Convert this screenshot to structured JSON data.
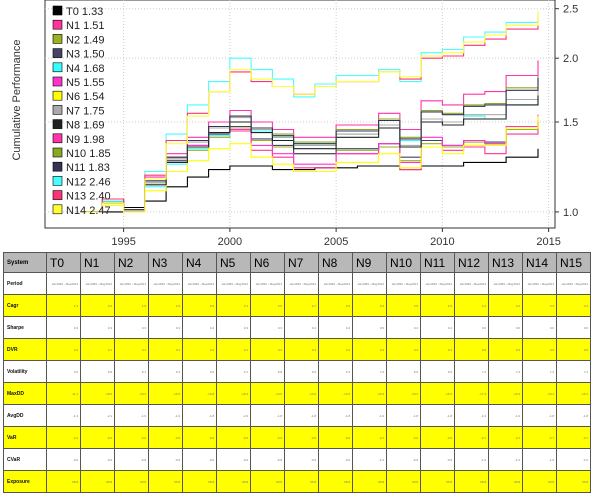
{
  "chart_data": {
    "type": "line",
    "title": "",
    "xlabel": "",
    "ylabel": "Cumulative Performance",
    "x_ticks": [
      "1995",
      "2000",
      "2005",
      "2010",
      "2015"
    ],
    "x_tick_values": [
      1995,
      2000,
      2005,
      2010,
      2015
    ],
    "y_ticks": [
      "1.0",
      "1.5",
      "2.0",
      "2.5"
    ],
    "y_tick_values": [
      1.0,
      1.5,
      2.0,
      2.5
    ],
    "xlim": [
      1991.3,
      2015.3
    ],
    "ylim": [
      0.93,
      2.6
    ],
    "y_scale": "log",
    "grid": true,
    "legend_position": "top-left",
    "series": [
      {
        "name": "T0",
        "label": "T0 1.33",
        "color": "#000000",
        "x": [
          1993.0,
          1995,
          1996,
          1997,
          1998,
          1999,
          2000,
          2002,
          2004,
          2006,
          2008,
          2009,
          2011,
          2013,
          2014.5
        ],
        "y": [
          1.0,
          1.02,
          1.05,
          1.12,
          1.17,
          1.21,
          1.23,
          1.21,
          1.22,
          1.23,
          1.21,
          1.23,
          1.25,
          1.28,
          1.33
        ]
      },
      {
        "name": "N1",
        "label": "N1 1.51",
        "color": "#ff3399",
        "x": [
          1993.0,
          1994,
          1995,
          1996,
          1997,
          1998,
          1999,
          2000,
          2001,
          2002,
          2003,
          2005,
          2007,
          2008,
          2009,
          2010,
          2011,
          2012,
          2013,
          2014.5
        ],
        "y": [
          1.0,
          1.06,
          1.0,
          1.16,
          1.28,
          1.35,
          1.42,
          1.44,
          1.32,
          1.28,
          1.22,
          1.3,
          1.34,
          1.21,
          1.38,
          1.32,
          1.34,
          1.3,
          1.42,
          1.51
        ]
      },
      {
        "name": "N2",
        "label": "N2 1.49",
        "color": "#99b21f",
        "x": [
          1993.0,
          1994,
          1995,
          1996,
          1997,
          1998,
          1999,
          2000,
          2001,
          2002,
          2003,
          2005,
          2007,
          2008,
          2009,
          2010,
          2011,
          2012,
          2013,
          2014.5
        ],
        "y": [
          1.0,
          1.05,
          1.01,
          1.14,
          1.25,
          1.32,
          1.4,
          1.46,
          1.38,
          1.34,
          1.3,
          1.32,
          1.34,
          1.26,
          1.36,
          1.34,
          1.37,
          1.36,
          1.45,
          1.49
        ]
      },
      {
        "name": "N3",
        "label": "N3 1.50",
        "color": "#444466",
        "x": [
          1993.0,
          1994,
          1995,
          1996,
          1997,
          1998,
          1999,
          2000,
          2001,
          2002,
          2003,
          2005,
          2007,
          2008,
          2009,
          2010,
          2011,
          2012,
          2013,
          2014.5
        ],
        "y": [
          1.0,
          1.05,
          1.01,
          1.15,
          1.26,
          1.34,
          1.42,
          1.47,
          1.39,
          1.35,
          1.3,
          1.33,
          1.36,
          1.28,
          1.38,
          1.35,
          1.38,
          1.37,
          1.46,
          1.5
        ]
      },
      {
        "name": "N4",
        "label": "N4 1.68",
        "color": "#33ffff",
        "x": [
          1993.0,
          1994,
          1995,
          1996,
          1997,
          1998,
          1999,
          2000,
          2001,
          2002,
          2003,
          2005,
          2007,
          2008,
          2009,
          2010,
          2011,
          2012,
          2013,
          2014.5
        ],
        "y": [
          1.0,
          1.04,
          1.0,
          1.12,
          1.24,
          1.33,
          1.41,
          1.5,
          1.44,
          1.4,
          1.36,
          1.42,
          1.48,
          1.38,
          1.52,
          1.5,
          1.54,
          1.52,
          1.62,
          1.68
        ]
      },
      {
        "name": "N5",
        "label": "N5 1.55",
        "color": "#ff33cc",
        "x": [
          1993.0,
          1994,
          1995,
          1996,
          1997,
          1998,
          1999,
          2000,
          2001,
          2002,
          2003,
          2005,
          2007,
          2008,
          2009,
          2010,
          2011,
          2012,
          2013,
          2014.5
        ],
        "y": [
          1.0,
          1.06,
          1.0,
          1.16,
          1.27,
          1.35,
          1.43,
          1.45,
          1.35,
          1.3,
          1.24,
          1.3,
          1.36,
          1.25,
          1.4,
          1.35,
          1.38,
          1.36,
          1.47,
          1.55
        ]
      },
      {
        "name": "N6",
        "label": "N6 1.54",
        "color": "#ffff00",
        "x": [
          1993.0,
          1994,
          1995,
          1996,
          1997,
          1998,
          1999,
          2000,
          2001,
          2002,
          2003,
          2005,
          2007,
          2008,
          2009,
          2010,
          2011,
          2012,
          2013,
          2014.5
        ],
        "y": [
          1.0,
          1.03,
          1.0,
          1.1,
          1.2,
          1.26,
          1.33,
          1.36,
          1.28,
          1.24,
          1.2,
          1.25,
          1.3,
          1.22,
          1.34,
          1.3,
          1.35,
          1.35,
          1.46,
          1.54
        ]
      },
      {
        "name": "N7",
        "label": "N7 1.75",
        "color": "#aaaaaa",
        "x": [
          1993.0,
          1994,
          1995,
          1996,
          1997,
          1998,
          1999,
          2000,
          2001,
          2002,
          2003,
          2005,
          2007,
          2008,
          2009,
          2010,
          2011,
          2012,
          2013,
          2014.5
        ],
        "y": [
          1.0,
          1.05,
          1.01,
          1.14,
          1.27,
          1.37,
          1.46,
          1.53,
          1.45,
          1.4,
          1.35,
          1.42,
          1.48,
          1.35,
          1.52,
          1.5,
          1.55,
          1.55,
          1.66,
          1.75
        ]
      },
      {
        "name": "N8",
        "label": "N8 1.69",
        "color": "#222222",
        "x": [
          1993.0,
          1994,
          1995,
          1996,
          1997,
          1998,
          1999,
          2000,
          2001,
          2002,
          2003,
          2005,
          2007,
          2008,
          2009,
          2010,
          2011,
          2012,
          2013,
          2014.5
        ],
        "y": [
          1.0,
          1.04,
          1.0,
          1.13,
          1.25,
          1.34,
          1.43,
          1.5,
          1.43,
          1.38,
          1.33,
          1.4,
          1.46,
          1.34,
          1.5,
          1.48,
          1.52,
          1.52,
          1.62,
          1.69
        ]
      },
      {
        "name": "N9",
        "label": "N9 1.98",
        "color": "#ff33aa",
        "x": [
          1993.0,
          1994,
          1995,
          1996,
          1997,
          1998,
          1999,
          2000,
          2001,
          2002,
          2003,
          2005,
          2007,
          2008,
          2009,
          2010,
          2011,
          2012,
          2013,
          2014.5
        ],
        "y": [
          1.0,
          1.06,
          1.01,
          1.17,
          1.3,
          1.4,
          1.5,
          1.58,
          1.5,
          1.45,
          1.4,
          1.48,
          1.56,
          1.45,
          1.65,
          1.62,
          1.7,
          1.72,
          1.85,
          1.98
        ]
      },
      {
        "name": "N10",
        "label": "N10 1.85",
        "color": "#88aa22",
        "x": [
          1993.0,
          1994,
          1995,
          1996,
          1997,
          1998,
          1999,
          2000,
          2001,
          2002,
          2003,
          2005,
          2007,
          2008,
          2009,
          2010,
          2011,
          2012,
          2013,
          2014.5
        ],
        "y": [
          1.0,
          1.05,
          1.01,
          1.15,
          1.28,
          1.38,
          1.47,
          1.54,
          1.46,
          1.42,
          1.37,
          1.45,
          1.52,
          1.4,
          1.58,
          1.56,
          1.62,
          1.63,
          1.75,
          1.85
        ]
      },
      {
        "name": "N11",
        "label": "N11 1.83",
        "color": "#333355",
        "x": [
          1993.0,
          1994,
          1995,
          1996,
          1997,
          1998,
          1999,
          2000,
          2001,
          2002,
          2003,
          2005,
          2007,
          2008,
          2009,
          2010,
          2011,
          2012,
          2013,
          2014.5
        ],
        "y": [
          1.0,
          1.05,
          1.01,
          1.15,
          1.28,
          1.38,
          1.47,
          1.54,
          1.46,
          1.41,
          1.36,
          1.44,
          1.51,
          1.39,
          1.57,
          1.55,
          1.61,
          1.62,
          1.73,
          1.83
        ]
      },
      {
        "name": "N12",
        "label": "N12 2.46",
        "color": "#44ffff",
        "x": [
          1993.0,
          1994,
          1995,
          1996,
          1997,
          1998,
          1999,
          2000,
          2001,
          2002,
          2003,
          2004,
          2005,
          2007,
          2008,
          2009,
          2010,
          2011,
          2012,
          2013,
          2014.5
        ],
        "y": [
          1.0,
          1.05,
          1.0,
          1.2,
          1.42,
          1.62,
          1.8,
          2.0,
          1.9,
          1.82,
          1.68,
          1.78,
          1.85,
          1.9,
          1.8,
          2.05,
          2.08,
          2.2,
          2.25,
          2.35,
          2.46
        ]
      },
      {
        "name": "N13",
        "label": "N13 2.40",
        "color": "#ff3377",
        "x": [
          1993.0,
          1994,
          1995,
          1996,
          1997,
          1998,
          1999,
          2000,
          2001,
          2002,
          2003,
          2004,
          2005,
          2007,
          2008,
          2009,
          2010,
          2011,
          2012,
          2013,
          2014.5
        ],
        "y": [
          1.0,
          1.06,
          1.0,
          1.18,
          1.38,
          1.56,
          1.72,
          1.88,
          1.8,
          1.76,
          1.7,
          1.76,
          1.8,
          1.88,
          1.82,
          2.0,
          2.02,
          2.12,
          2.18,
          2.28,
          2.4
        ]
      },
      {
        "name": "N14",
        "label": "N14 2.47",
        "color": "#ffff33",
        "x": [
          1993.0,
          1994,
          1995,
          1996,
          1997,
          1998,
          1999,
          2000,
          2001,
          2002,
          2003,
          2004,
          2005,
          2007,
          2008,
          2009,
          2010,
          2011,
          2012,
          2013,
          2014.5
        ],
        "y": [
          1.0,
          1.04,
          1.0,
          1.16,
          1.36,
          1.54,
          1.72,
          1.9,
          1.82,
          1.76,
          1.7,
          1.76,
          1.8,
          1.88,
          1.84,
          2.02,
          2.05,
          2.15,
          2.22,
          2.32,
          2.47
        ]
      }
    ]
  },
  "table": {
    "header": [
      "System",
      "T0",
      "N1",
      "N2",
      "N3",
      "N4",
      "N5",
      "N6",
      "N7",
      "N8",
      "N9",
      "N10",
      "N11",
      "N12",
      "N13",
      "N14",
      "N15"
    ],
    "rows": [
      {
        "label": "Period",
        "style": "white",
        "cells": [
          "Jan1993 - May2014",
          "Jan1993 - May2014",
          "Jan1993 - May2014",
          "Jan1993 - May2014",
          "Jan1993 - May2014",
          "Jan1993 - May2014",
          "Jan1993 - May2014",
          "Jan1993 - May2014",
          "Jan1993 - May2014",
          "Jan1993 - May2014",
          "Jan1993 - May2014",
          "Jan1993 - May2014",
          "Jan1993 - May2014",
          "Jan1993 - May2014",
          "Jan1993 - May2014",
          "Jan1993 - May2014"
        ]
      },
      {
        "label": "Cagr",
        "style": "yellow",
        "cells": [
          "1.4",
          "2.0",
          "1.9",
          "1.9",
          "2.5",
          "2.1",
          "2.0",
          "2.7",
          "2.5",
          "3.3",
          "2.9",
          "2.9",
          "4.3",
          "4.2",
          "4.3",
          "4.3"
        ]
      },
      {
        "label": "Sharpe",
        "style": "white",
        "cells": [
          "0.3",
          "0.3",
          "0.3",
          "0.3",
          "0.4",
          "0.3",
          "0.3",
          "0.4",
          "0.4",
          "0.5",
          "0.4",
          "0.4",
          "0.6",
          "0.6",
          "0.6",
          "0.6"
        ]
      },
      {
        "label": "DVR",
        "style": "yellow",
        "cells": [
          "0.2",
          "0.1",
          "0.1",
          "0.1",
          "0.3",
          "0.1",
          "0.2",
          "0.3",
          "0.3",
          "0.4",
          "0.3",
          "0.3",
          "0.5",
          "0.5",
          "0.5",
          "0.5"
        ]
      },
      {
        "label": "Volatility",
        "style": "white",
        "cells": [
          "4.6",
          "6.8",
          "6.1",
          "6.3",
          "6.6",
          "6.7",
          "5.8",
          "6.6",
          "6.3",
          "7.0",
          "6.6",
          "6.6",
          "7.4",
          "7.3",
          "7.2",
          "7.2"
        ]
      },
      {
        "label": "MaxDD",
        "style": "yellow",
        "cells": [
          "-11.1",
          "-18.5",
          "-15.2",
          "-15.5",
          "-14.8",
          "-18.4",
          "-14.0",
          "-14.6",
          "-14.5",
          "-16.9",
          "-15.2",
          "-15.4",
          "-17.3",
          "-16.4",
          "-16.1",
          "-16.1"
        ]
      },
      {
        "label": "AvgDD",
        "style": "white",
        "cells": [
          "-1.3",
          "-2.1",
          "-1.9",
          "-1.9",
          "-1.8",
          "-2.0",
          "-1.8",
          "-1.8",
          "-1.8",
          "-1.9",
          "-1.8",
          "-1.8",
          "-1.9",
          "-1.9",
          "-1.8",
          "-1.8"
        ]
      },
      {
        "label": "VaR",
        "style": "yellow",
        "cells": [
          "-0.4",
          "-0.6",
          "-0.6",
          "-0.6",
          "-0.6",
          "-0.6",
          "-0.5",
          "-0.6",
          "-0.6",
          "-0.7",
          "-0.6",
          "-0.6",
          "-0.7",
          "-0.7",
          "-0.7",
          "-0.7"
        ]
      },
      {
        "label": "CVaR",
        "style": "white",
        "cells": [
          "-0.6",
          "-0.9",
          "-0.8",
          "-0.9",
          "-0.9",
          "-0.9",
          "-0.8",
          "-0.9",
          "-0.9",
          "-1.0",
          "-0.9",
          "-0.9",
          "-1.0",
          "-1.0",
          "-1.0",
          "-1.0"
        ]
      },
      {
        "label": "Exposure",
        "style": "yellow",
        "cells": [
          "99.8",
          "99.8",
          "99.8",
          "99.8",
          "99.8",
          "99.8",
          "99.8",
          "99.8",
          "99.8",
          "99.8",
          "99.8",
          "99.8",
          "99.8",
          "99.8",
          "99.8",
          "99.8"
        ]
      }
    ]
  }
}
